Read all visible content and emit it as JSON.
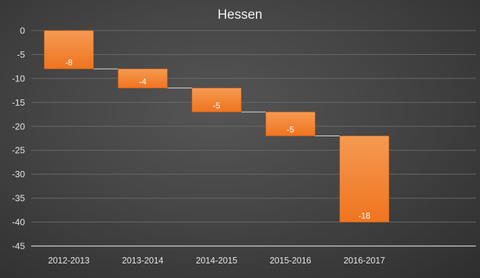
{
  "chart_data": {
    "type": "bar",
    "subtype": "waterfall",
    "title": "Hessen",
    "categories": [
      "2012-2013",
      "2013-2014",
      "2014-2015",
      "2015-2016",
      "2016-2017"
    ],
    "values": [
      -8,
      -4,
      -5,
      -5,
      -18
    ],
    "ylim": [
      -45,
      0
    ],
    "yticks": [
      0,
      -5,
      -10,
      -15,
      -20,
      -25,
      -30,
      -35,
      -40,
      -45
    ],
    "grid": true,
    "legend": "none",
    "colors": {
      "bar": "#f07a22",
      "bar_light": "#f59a52",
      "bar_edge": "#c55a0e"
    }
  }
}
